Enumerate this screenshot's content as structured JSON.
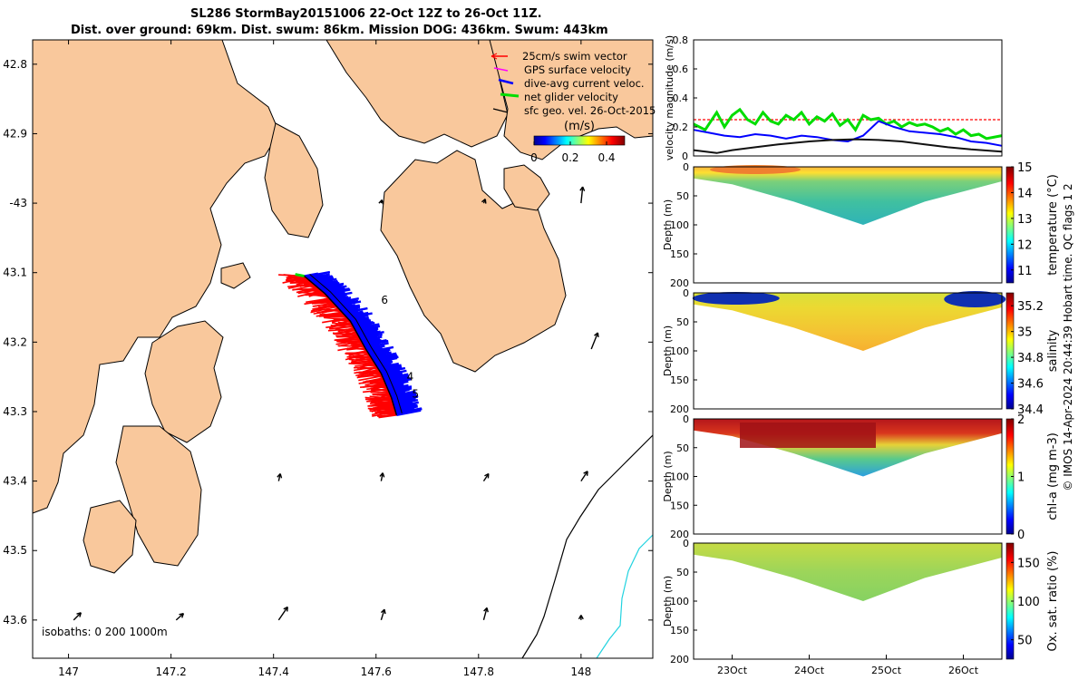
{
  "header": {
    "title_line1": "SL286 StormBay20151006 22-Oct 12Z to 26-Oct 11Z.",
    "title_line2": "Dist. over ground: 69km. Dist. swum: 86km. Mission DOG: 436km. Swum: 443km"
  },
  "footer": {
    "stamp": "© IMOS 14-Apr-2024 20:44:39 Hobart time. QC flags 1  2"
  },
  "colors": {
    "land": "#f9c89c",
    "sea": "#ffffff",
    "swim": "#ff0000",
    "gps": "#ff00ff",
    "dive_avg": "#0000ff",
    "net": "#00dd00",
    "isobath_200": "#000000",
    "isobath_1000": "#22d3e0"
  },
  "chart_data": [
    {
      "type": "map",
      "name": "glider track map",
      "xlim": [
        146.93,
        148.14
      ],
      "ylim": [
        43.655,
        42.765
      ],
      "xticks": [
        147,
        147.2,
        147.4,
        147.6,
        147.8,
        148
      ],
      "xtick_labels": [
        "147",
        "147.2",
        "147.4",
        "147.6",
        "147.8",
        "148"
      ],
      "yticks": [
        42.8,
        42.9,
        43.0,
        43.1,
        43.2,
        43.3,
        43.4,
        43.5,
        43.6
      ],
      "ytick_labels": [
        "42.8",
        "42.9",
        "-43",
        "43.1",
        "43.2",
        "43.3",
        "43.4",
        "43.5",
        "43.6"
      ],
      "legend": [
        "25cm/s swim vector",
        "GPS surface velocity",
        "dive-avg current veloc.",
        "net glider velocity",
        "sfc geo. vel. 26-Oct-2015"
      ],
      "colorbar": {
        "label": "(m/s)",
        "ticks": [
          0,
          0.2,
          0.4
        ],
        "tick_labels": [
          "0",
          "0.2",
          "0.4"
        ],
        "range": [
          0,
          0.5
        ]
      },
      "isobath_label": "isobaths: 0   200  1000m",
      "day_labels": [
        {
          "text": "6",
          "lon": 147.61,
          "lat": 43.145
        },
        {
          "text": "4",
          "lon": 147.66,
          "lat": 43.255
        },
        {
          "text": "5",
          "lon": 147.67,
          "lat": 43.28
        }
      ],
      "track": [
        [
          147.46,
          43.105
        ],
        [
          147.5,
          43.13
        ],
        [
          147.55,
          43.17
        ],
        [
          147.58,
          43.21
        ],
        [
          147.61,
          43.245
        ],
        [
          147.63,
          43.28
        ],
        [
          147.64,
          43.305
        ]
      ],
      "surface_geostrophic_arrows": [
        {
          "lon": 148.0,
          "lat": 43.0,
          "u": 0.02,
          "v": 0.2
        },
        {
          "lon": 148.02,
          "lat": 43.21,
          "u": 0.08,
          "v": 0.2
        },
        {
          "lon": 147.01,
          "lat": 43.6,
          "u": 0.09,
          "v": 0.09
        },
        {
          "lon": 147.21,
          "lat": 43.6,
          "u": 0.09,
          "v": 0.08
        },
        {
          "lon": 147.41,
          "lat": 43.6,
          "u": 0.11,
          "v": 0.16
        },
        {
          "lon": 147.61,
          "lat": 43.6,
          "u": 0.04,
          "v": 0.13
        },
        {
          "lon": 147.81,
          "lat": 43.6,
          "u": 0.04,
          "v": 0.15
        },
        {
          "lon": 148.0,
          "lat": 43.6,
          "u": 0.0,
          "v": 0.06
        },
        {
          "lon": 147.41,
          "lat": 43.4,
          "u": 0.02,
          "v": 0.09
        },
        {
          "lon": 147.61,
          "lat": 43.4,
          "u": 0.02,
          "v": 0.1
        },
        {
          "lon": 147.81,
          "lat": 43.4,
          "u": 0.06,
          "v": 0.09
        },
        {
          "lon": 148.0,
          "lat": 43.4,
          "u": 0.08,
          "v": 0.12
        },
        {
          "lon": 147.81,
          "lat": 43.0,
          "u": 0.02,
          "v": 0.05
        },
        {
          "lon": 147.61,
          "lat": 43.0,
          "u": 0.01,
          "v": 0.04
        }
      ]
    },
    {
      "type": "line",
      "name": "velocity magnitude",
      "ylabel": "velocity magnitude (m/s)",
      "ylim": [
        0,
        0.8
      ],
      "yticks": [
        0,
        0.2,
        0.4,
        0.6,
        0.8
      ],
      "ytick_labels": [
        "0",
        "0.2",
        "0.4",
        "0.6",
        "0.8"
      ],
      "xlim": [
        22.5,
        26.5
      ],
      "series": [
        {
          "name": "25cm/s swim reference",
          "color": "#ff0000",
          "x": [
            22.5,
            26.5
          ],
          "y": [
            0.25,
            0.25
          ]
        },
        {
          "name": "net glider velocity",
          "color": "#00dd00",
          "x": [
            22.5,
            22.65,
            22.8,
            22.9,
            23.0,
            23.1,
            23.2,
            23.3,
            23.4,
            23.5,
            23.6,
            23.7,
            23.8,
            23.9,
            24.0,
            24.1,
            24.2,
            24.3,
            24.4,
            24.5,
            24.6,
            24.7,
            24.8,
            24.9,
            25.0,
            25.1,
            25.2,
            25.3,
            25.4,
            25.5,
            25.6,
            25.7,
            25.8,
            25.9,
            26.0,
            26.1,
            26.2,
            26.3,
            26.5
          ],
          "y": [
            0.22,
            0.18,
            0.3,
            0.2,
            0.28,
            0.32,
            0.25,
            0.22,
            0.3,
            0.24,
            0.22,
            0.28,
            0.25,
            0.3,
            0.22,
            0.27,
            0.24,
            0.29,
            0.21,
            0.25,
            0.18,
            0.28,
            0.25,
            0.26,
            0.22,
            0.24,
            0.2,
            0.23,
            0.21,
            0.22,
            0.2,
            0.17,
            0.19,
            0.15,
            0.18,
            0.14,
            0.15,
            0.12,
            0.14
          ]
        },
        {
          "name": "dive-avg current veloc.",
          "color": "#0000ff",
          "x": [
            22.5,
            22.7,
            22.9,
            23.1,
            23.3,
            23.5,
            23.7,
            23.9,
            24.1,
            24.3,
            24.5,
            24.7,
            24.9,
            25.1,
            25.3,
            25.5,
            25.7,
            25.9,
            26.1,
            26.3,
            26.5
          ],
          "y": [
            0.18,
            0.16,
            0.14,
            0.13,
            0.15,
            0.14,
            0.12,
            0.14,
            0.13,
            0.11,
            0.1,
            0.14,
            0.24,
            0.2,
            0.17,
            0.16,
            0.15,
            0.13,
            0.1,
            0.09,
            0.07
          ]
        },
        {
          "name": "sfc geo. vel.",
          "color": "#111111",
          "x": [
            22.5,
            22.8,
            23.0,
            23.3,
            23.6,
            24.0,
            24.3,
            24.6,
            24.9,
            25.2,
            25.5,
            25.8,
            26.1,
            26.5
          ],
          "y": [
            0.04,
            0.02,
            0.04,
            0.06,
            0.08,
            0.1,
            0.11,
            0.115,
            0.11,
            0.1,
            0.08,
            0.06,
            0.045,
            0.03
          ]
        }
      ]
    },
    {
      "type": "heatmap",
      "name": "temperature section",
      "ylabel": "Depth (m)",
      "ylim": [
        0,
        200
      ],
      "yticks": [
        0,
        50,
        100,
        150,
        200
      ],
      "colorbar": {
        "label": "temperature (°C)",
        "range": [
          10.5,
          15
        ],
        "ticks": [
          "11",
          "12",
          "13",
          "14",
          "15"
        ]
      },
      "profile_max_depth": [
        {
          "day": 22.5,
          "depth": 20
        },
        {
          "day": 23.0,
          "depth": 30
        },
        {
          "day": 23.8,
          "depth": 60
        },
        {
          "day": 24.7,
          "depth": 100
        },
        {
          "day": 25.5,
          "depth": 60
        },
        {
          "day": 26.5,
          "depth": 25
        }
      ],
      "surface_value": 14.5,
      "deep_value": 12.3
    },
    {
      "type": "heatmap",
      "name": "salinity section",
      "ylabel": "Depth (m)",
      "ylim": [
        0,
        200
      ],
      "yticks": [
        0,
        50,
        100,
        150,
        200
      ],
      "colorbar": {
        "label": "salinity",
        "range": [
          34.4,
          35.3
        ],
        "ticks": [
          "34.4",
          "34.6",
          "34.8",
          "35",
          "35.2"
        ]
      },
      "profile_max_depth": [
        {
          "day": 22.5,
          "depth": 20
        },
        {
          "day": 23.0,
          "depth": 30
        },
        {
          "day": 23.8,
          "depth": 60
        },
        {
          "day": 24.7,
          "depth": 100
        },
        {
          "day": 25.5,
          "depth": 60
        },
        {
          "day": 26.5,
          "depth": 25
        }
      ],
      "surface_value": 34.5,
      "deep_value": 35.1
    },
    {
      "type": "heatmap",
      "name": "chlorophyll section",
      "ylabel": "Depth (m)",
      "ylim": [
        0,
        200
      ],
      "yticks": [
        0,
        50,
        100,
        150,
        200
      ],
      "colorbar": {
        "label": "chl-a (mg m-3)",
        "range": [
          0,
          2
        ],
        "ticks": [
          "0",
          "1",
          "2"
        ]
      },
      "profile_max_depth": [
        {
          "day": 22.5,
          "depth": 20
        },
        {
          "day": 23.0,
          "depth": 30
        },
        {
          "day": 23.8,
          "depth": 60
        },
        {
          "day": 24.7,
          "depth": 100
        },
        {
          "day": 25.5,
          "depth": 60
        },
        {
          "day": 26.5,
          "depth": 25
        }
      ],
      "surface_value": 1.8,
      "deep_value": 0.7
    },
    {
      "type": "heatmap",
      "name": "oxygen saturation section",
      "ylabel": "Depth (m)",
      "ylim": [
        0,
        200
      ],
      "yticks": [
        0,
        50,
        100,
        150,
        200
      ],
      "xlim": [
        22.5,
        26.5
      ],
      "xticks": [
        23,
        24,
        25,
        26
      ],
      "xtick_labels": [
        "23Oct",
        "24Oct",
        "25Oct",
        "26Oct"
      ],
      "colorbar": {
        "label": "Ox. sat. ratio (%)",
        "range": [
          25,
          175
        ],
        "ticks": [
          "50",
          "100",
          "150"
        ]
      },
      "profile_max_depth": [
        {
          "day": 22.5,
          "depth": 20
        },
        {
          "day": 23.0,
          "depth": 30
        },
        {
          "day": 23.8,
          "depth": 60
        },
        {
          "day": 24.7,
          "depth": 100
        },
        {
          "day": 25.5,
          "depth": 60
        },
        {
          "day": 26.5,
          "depth": 25
        }
      ],
      "surface_value": 125,
      "deep_value": 118
    }
  ]
}
